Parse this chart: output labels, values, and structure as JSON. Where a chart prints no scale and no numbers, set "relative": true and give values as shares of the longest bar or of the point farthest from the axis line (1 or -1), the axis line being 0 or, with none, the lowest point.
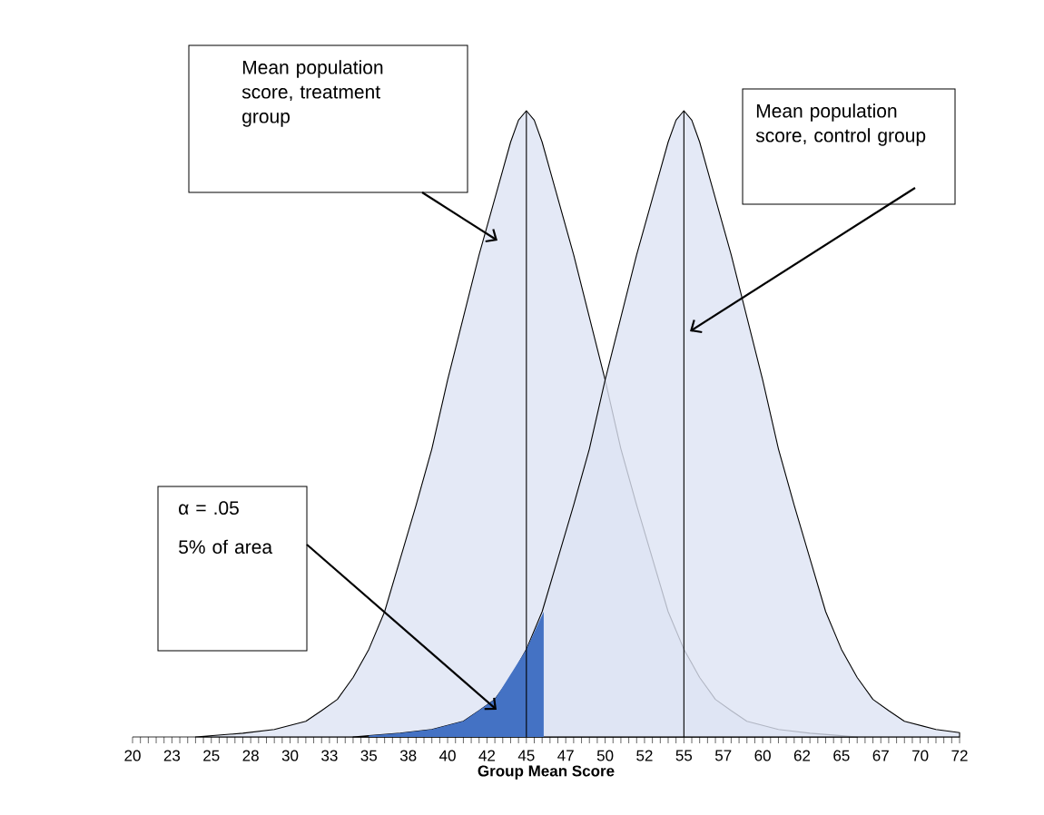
{
  "chart_data": {
    "type": "area",
    "relative": true,
    "xlabel": "Group Mean Score",
    "xlim": [
      20,
      72.5
    ],
    "xticks": [
      20,
      {
        "value": 22.5,
        "label": "23"
      },
      25,
      {
        "value": 27.5,
        "label": "28"
      },
      30,
      {
        "value": 32.5,
        "label": "33"
      },
      35,
      {
        "value": 37.5,
        "label": "38"
      },
      40,
      {
        "value": 42.5,
        "label": "42"
      },
      45,
      {
        "value": 47.5,
        "label": "47"
      },
      50,
      {
        "value": 52.5,
        "label": "52"
      },
      55,
      {
        "value": 57.5,
        "label": "57"
      },
      60,
      {
        "value": 62.5,
        "label": "62"
      },
      65,
      {
        "value": 67.5,
        "label": "67"
      },
      70,
      {
        "value": 72.5,
        "label": "72"
      }
    ],
    "series": [
      {
        "color": "#dde4f4",
        "x": [
          24,
          25,
          27,
          29,
          31,
          32,
          33,
          34,
          35,
          36,
          37,
          38,
          39,
          40,
          41,
          42,
          43,
          43.5,
          44,
          44.5,
          45,
          45.5,
          46,
          46.5,
          47,
          48,
          49,
          50,
          51,
          52,
          53,
          54,
          55,
          56,
          57,
          58,
          59,
          61,
          63,
          65,
          66
        ],
        "values": [
          0,
          0.002,
          0.006,
          0.012,
          0.025,
          0.042,
          0.06,
          0.095,
          0.14,
          0.2,
          0.285,
          0.37,
          0.46,
          0.57,
          0.67,
          0.77,
          0.86,
          0.905,
          0.95,
          0.985,
          1,
          0.985,
          0.95,
          0.905,
          0.86,
          0.77,
          0.67,
          0.57,
          0.46,
          0.37,
          0.285,
          0.2,
          0.14,
          0.095,
          0.06,
          0.042,
          0.025,
          0.012,
          0.006,
          0.002,
          0
        ]
      },
      {
        "color": "#dde4f4",
        "x": [
          34,
          35,
          37,
          39,
          41,
          42,
          43,
          44,
          45,
          46,
          47,
          48,
          49,
          50,
          51,
          52,
          53,
          53.5,
          54,
          54.5,
          55,
          55.5,
          56,
          56.5,
          57,
          58,
          59,
          60,
          61,
          62,
          63,
          64,
          65,
          66,
          67,
          68,
          69,
          71,
          72.5
        ],
        "values": [
          0,
          0.002,
          0.006,
          0.012,
          0.025,
          0.042,
          0.06,
          0.095,
          0.14,
          0.2,
          0.285,
          0.37,
          0.46,
          0.57,
          0.67,
          0.77,
          0.86,
          0.905,
          0.95,
          0.985,
          1,
          0.985,
          0.95,
          0.905,
          0.86,
          0.77,
          0.67,
          0.57,
          0.46,
          0.37,
          0.285,
          0.2,
          0.14,
          0.095,
          0.06,
          0.042,
          0.025,
          0.012,
          0.007
        ]
      },
      {
        "color": "#4472c4",
        "x": [
          35,
          37,
          39,
          41,
          43,
          45,
          46.1
        ],
        "values": [
          0.002,
          0.006,
          0.012,
          0.025,
          0.06,
          0.14,
          0.2
        ]
      }
    ],
    "ref_lines": [
      {
        "axis": "x",
        "value": 45,
        "color": "#000000"
      },
      {
        "axis": "x",
        "value": 55,
        "color": "#000000"
      }
    ],
    "annotations": [
      "Mean population score, treatment group",
      "Mean population score, control group",
      "α = .05",
      "5% of area"
    ]
  }
}
